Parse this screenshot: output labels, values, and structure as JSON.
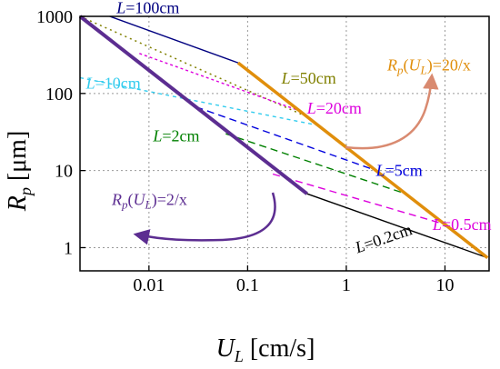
{
  "chart_data": {
    "type": "line",
    "x_scale": "log",
    "y_scale": "log",
    "xlim": [
      0.002,
      28
    ],
    "ylim": [
      0.5,
      1000
    ],
    "grid": true,
    "x_ticks": [
      {
        "value": 0.01,
        "label": "0.01"
      },
      {
        "value": 0.1,
        "label": "0.1"
      },
      {
        "value": 1,
        "label": "1"
      },
      {
        "value": 10,
        "label": "10"
      }
    ],
    "y_ticks": [
      {
        "value": 1,
        "label": "1"
      },
      {
        "value": 10,
        "label": "10"
      },
      {
        "value": 100,
        "label": "100"
      },
      {
        "value": 1000,
        "label": "1000"
      }
    ],
    "xlabel": {
      "main": "U",
      "sub": "L",
      "unit": " [cm/s]"
    },
    "ylabel": {
      "main": "R",
      "sub": "p",
      "unit": " [μm]"
    },
    "series": [
      {
        "id": "L100",
        "color": "#000080",
        "dash": "",
        "width": 1.4,
        "x": [
          0.004,
          0.08
        ],
        "y": [
          1000,
          250
        ]
      },
      {
        "id": "L50",
        "color": "#808000",
        "dash": "2,4",
        "width": 1.5,
        "x": [
          0.002,
          0.4
        ],
        "y": [
          1000,
          50
        ]
      },
      {
        "id": "L20",
        "color": "#dd00dd",
        "dash": "3,3",
        "width": 1.4,
        "x": [
          0.008,
          0.33
        ],
        "y": [
          330,
          60
        ]
      },
      {
        "id": "L10",
        "color": "#33ccee",
        "dash": "4,4",
        "width": 1.4,
        "x": [
          0.002,
          0.55
        ],
        "y": [
          160,
          38
        ]
      },
      {
        "id": "L5",
        "color": "#0000dd",
        "dash": "8,5",
        "width": 1.4,
        "x": [
          0.03,
          2.0
        ],
        "y": [
          67,
          10
        ]
      },
      {
        "id": "L2",
        "color": "#008000",
        "dash": "8,5",
        "width": 1.4,
        "x": [
          0.06,
          4.0
        ],
        "y": [
          30,
          5
        ]
      },
      {
        "id": "L0.5",
        "color": "#dd00dd",
        "dash": "8,5",
        "width": 1.4,
        "x": [
          0.18,
          10.0
        ],
        "y": [
          9,
          2
        ]
      },
      {
        "id": "L0.2",
        "color": "#000000",
        "dash": "",
        "width": 1.4,
        "x": [
          0.4,
          27
        ],
        "y": [
          5,
          0.74
        ]
      },
      {
        "id": "Rp2",
        "color": "#5c2d91",
        "dash": "",
        "width": 4,
        "x": [
          0.002,
          0.4
        ],
        "y": [
          1000,
          5
        ]
      },
      {
        "id": "Rp20",
        "color": "#e08e0b",
        "dash": "",
        "width": 3.5,
        "x": [
          0.08,
          27
        ],
        "y": [
          250,
          0.74
        ]
      }
    ],
    "annotations": [
      {
        "id": "L100",
        "pre": "L",
        "text": "=100cm",
        "color": "#000080",
        "size": 21,
        "at": [
          0.0047,
          1100
        ]
      },
      {
        "id": "L50",
        "pre": "L",
        "text": "=50cm",
        "color": "#808000",
        "size": 17,
        "at": [
          0.22,
          135
        ]
      },
      {
        "id": "L20",
        "pre": "L",
        "text": "=20cm",
        "color": "#dd00dd",
        "size": 17,
        "at": [
          0.4,
          55
        ]
      },
      {
        "id": "L10",
        "pre": "L",
        "text": "=10cm",
        "color": "#33ccee",
        "size": 17,
        "at": [
          0.0023,
          115
        ]
      },
      {
        "id": "L5",
        "pre": "L",
        "text": "=5cm",
        "color": "#0000dd",
        "size": 17,
        "at": [
          2.0,
          8.5
        ]
      },
      {
        "id": "L2",
        "pre": "L",
        "text": "=2cm",
        "color": "#008000",
        "size": 17,
        "at": [
          0.011,
          24
        ]
      },
      {
        "id": "L0.5",
        "pre": "L",
        "text": "=0.5cm",
        "color": "#dd00dd",
        "size": 17,
        "at": [
          7.5,
          1.7
        ]
      },
      {
        "id": "L0.2",
        "pre": "L",
        "text": "=0.2cm",
        "color": "#000000",
        "size": 21,
        "at": [
          1.3,
          0.85
        ],
        "rotate": 19
      },
      {
        "id": "Rp2",
        "pre": "R",
        "sub": "p",
        "mid": "(U",
        "sub2": "L",
        "text": ")=2/x",
        "color": "#5c2d91",
        "size": 19,
        "at": [
          0.0042,
          3.6
        ]
      },
      {
        "id": "Rp20",
        "pre": "R",
        "sub": "p",
        "mid": "(U",
        "sub2": "L",
        "text": ")=20/x",
        "color": "#e08e0b",
        "size": 19,
        "at": [
          2.6,
          200
        ]
      }
    ]
  }
}
